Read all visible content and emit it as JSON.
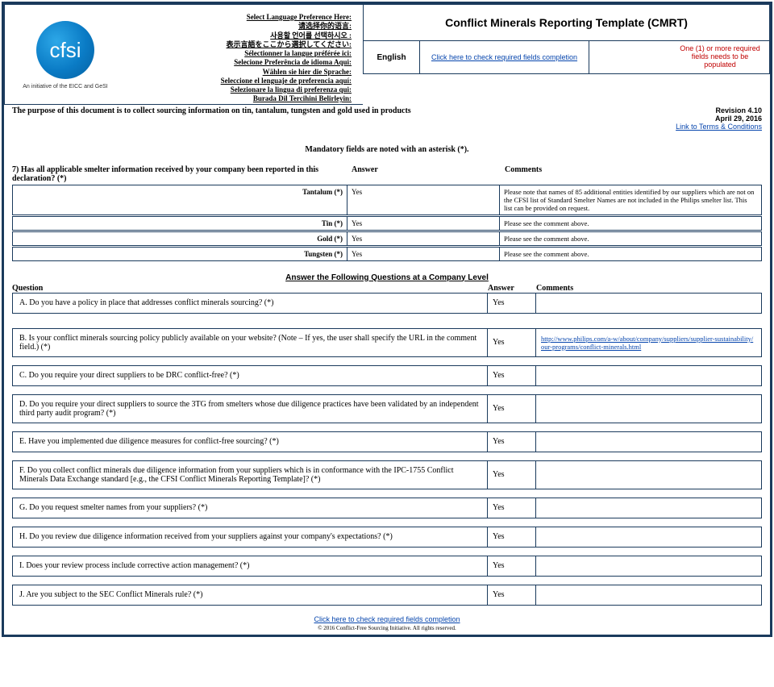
{
  "header": {
    "title": "Conflict Minerals Reporting Template (CMRT)",
    "logo_text": "cfsi",
    "initiative": "An initiative of the EICC and GeSI",
    "language_prompts": [
      "Select Language Preference Here:",
      "请选择你的语言:",
      "사용할 언어를 선택하시오 :",
      "表示言語をここから選択してください:",
      "Sélectionner la langue préférée ici:",
      "Selecione Preferência de idioma Aqui:",
      "Wählen sie hier die Sprache:",
      "Seleccione el lenguaje de preferencia aquí:",
      "Selezionare la lingua di preferenza qui:",
      "Burada Dil Tercihini Belirleyin:"
    ],
    "language_selected": "English",
    "check_link": "Click here to check required fields completion",
    "warning": "One (1) or more required fields needs to be populated",
    "revision": "Revision 4.10",
    "rev_date": "April 29, 2016",
    "terms_link": "Link to Terms & Conditions",
    "purpose": "The purpose of this document is to collect sourcing information on tin, tantalum, tungsten and gold used in products",
    "mandatory_note": "Mandatory fields are noted with an asterisk (*)."
  },
  "q7": {
    "question": "7) Has all applicable smelter information received by your company been reported in this declaration?  (*)",
    "col_answer": "Answer",
    "col_comments": "Comments",
    "rows": [
      {
        "metal": "Tantalum  (*)",
        "answer": "Yes",
        "comment": "Please note that names of 85 additional entities identified by our suppliers which are not on the CFSI list of Standard Smelter Names are not included in the Philips smelter list.  This list can be provided on request."
      },
      {
        "metal": "Tin  (*)",
        "answer": "Yes",
        "comment": "Please see the comment above."
      },
      {
        "metal": "Gold  (*)",
        "answer": "Yes",
        "comment": "Please see the comment above."
      },
      {
        "metal": "Tungsten  (*)",
        "answer": "Yes",
        "comment": "Please see the comment above."
      }
    ]
  },
  "company": {
    "heading": "Answer the Following Questions at a Company Level",
    "col_question": "Question",
    "col_answer": "Answer",
    "col_comments": "Comments",
    "rows": [
      {
        "q": "A. Do you have a policy in place that addresses conflict minerals sourcing? (*)",
        "a": "Yes",
        "c": ""
      },
      {
        "q": "B. Is your conflict minerals sourcing policy publicly available on your website? (Note – If yes, the user shall specify the URL in the comment field.) (*)",
        "a": "Yes",
        "c": "http://www.philips.com/a-w/about/company/suppliers/supplier-sustainability/our-programs/conflict-minerals.html",
        "is_link": true
      },
      {
        "q": "C. Do you require your direct suppliers to be DRC conflict-free? (*)",
        "a": "Yes",
        "c": ""
      },
      {
        "q": "D. Do you require your direct suppliers to source the 3TG from smelters whose due diligence practices have been validated by an independent third party audit program? (*)",
        "a": "Yes",
        "c": ""
      },
      {
        "q": "E. Have you implemented due diligence measures for conflict-free sourcing? (*)",
        "a": "Yes",
        "c": ""
      },
      {
        "q": "F. Do you collect conflict minerals due diligence information from your suppliers which is in conformance with the IPC-1755 Conflict Minerals Data Exchange standard [e.g., the CFSI Conflict Minerals Reporting Template]? (*)",
        "a": "Yes",
        "c": ""
      },
      {
        "q": "G. Do you request smelter names from your suppliers? (*)",
        "a": "Yes",
        "c": ""
      },
      {
        "q": "H. Do you review due diligence information received from your suppliers against your company's expectations? (*)",
        "a": "Yes",
        "c": ""
      },
      {
        "q": "I. Does your review process include corrective action management? (*)",
        "a": "Yes",
        "c": ""
      },
      {
        "q": "J. Are you subject to the SEC Conflict Minerals rule? (*)",
        "a": "Yes",
        "c": ""
      }
    ]
  },
  "footer": {
    "check_link": "Click here to check required fields completion",
    "copyright": "© 2016 Conflict-Free Sourcing Initiative. All rights reserved."
  }
}
